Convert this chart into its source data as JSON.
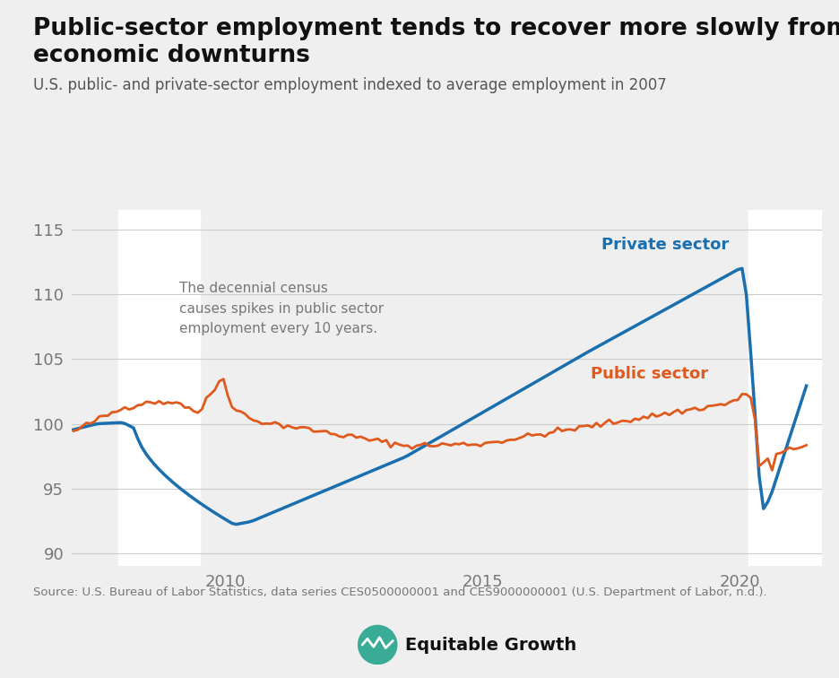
{
  "title_line1": "Public-sector employment tends to recover more slowly from",
  "title_line2": "economic downturns",
  "subtitle": "U.S. public- and private-sector employment indexed to average employment in 2007",
  "source": "Source: U.S. Bureau of Labor Statistics, data series CES0500000001 and CES9000000001 (U.S. Department of Labor, n.d.).",
  "private_label": "Private sector",
  "public_label": "Public sector",
  "private_color": "#1a6faf",
  "public_color": "#e05a1e",
  "annotation": "The decennial census\ncauses spikes in public sector\nemployment every 10 years.",
  "recession1_start": 2007.917,
  "recession1_end": 2009.5,
  "recession2_start": 2020.167,
  "recession2_end": 2021.6,
  "ylim": [
    89.0,
    116.5
  ],
  "yticks": [
    90,
    95,
    100,
    105,
    110,
    115
  ],
  "xlim_start": 2007.0,
  "xlim_end": 2021.6,
  "xticks": [
    2010,
    2015,
    2020
  ],
  "bg_color": "#efefef",
  "recession_color": "#ffffff",
  "grid_color": "#cccccc",
  "tick_label_color": "#777777",
  "annotation_color": "#777777",
  "title_color": "#111111",
  "subtitle_color": "#555555",
  "source_color": "#777777",
  "logo_color": "#3aab97",
  "private_lw": 2.5,
  "public_lw": 2.0,
  "title_fontsize": 19,
  "subtitle_fontsize": 12,
  "axis_fontsize": 13,
  "annotation_fontsize": 11,
  "label_fontsize": 13,
  "source_fontsize": 9.5,
  "logo_text_fontsize": 14
}
